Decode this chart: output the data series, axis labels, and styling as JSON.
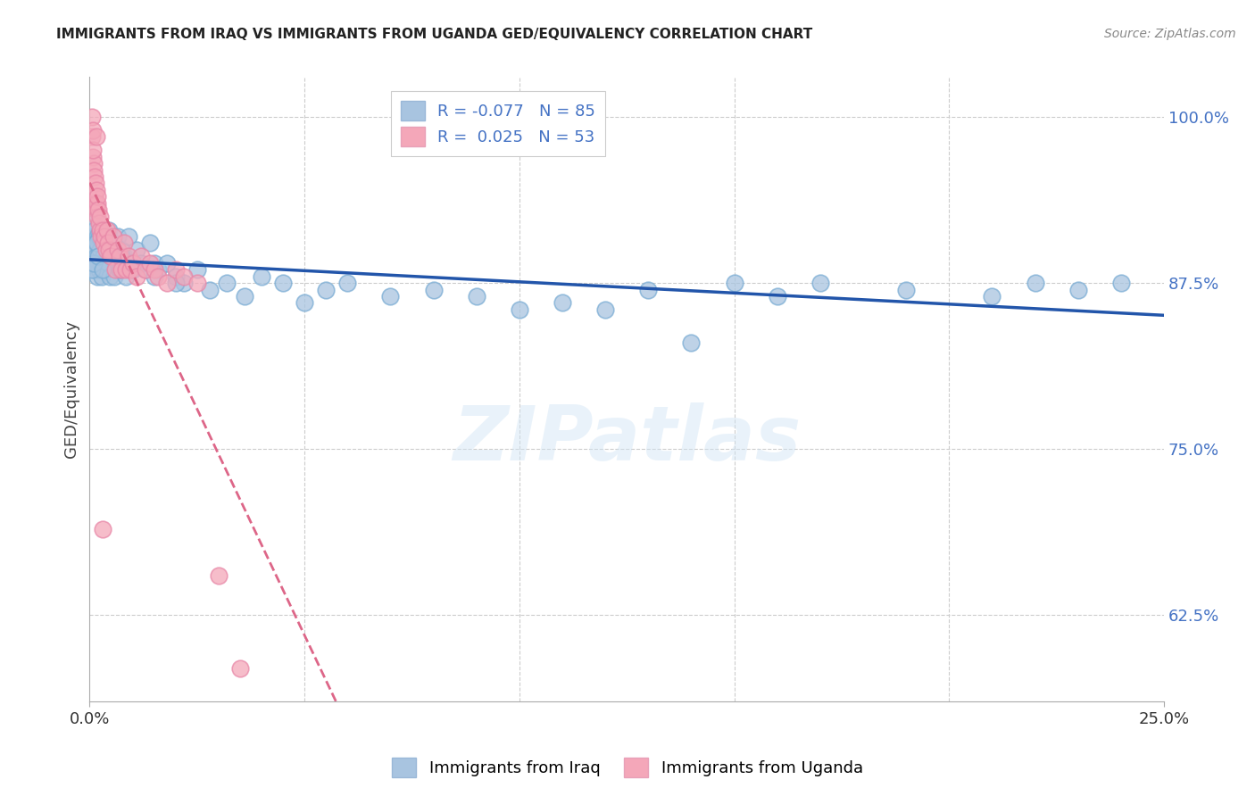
{
  "title": "IMMIGRANTS FROM IRAQ VS IMMIGRANTS FROM UGANDA GED/EQUIVALENCY CORRELATION CHART",
  "source": "Source: ZipAtlas.com",
  "ylabel": "GED/Equivalency",
  "yticks": [
    62.5,
    75.0,
    87.5,
    100.0
  ],
  "ytick_labels": [
    "62.5%",
    "75.0%",
    "87.5%",
    "100.0%"
  ],
  "xlim": [
    0.0,
    25.0
  ],
  "ylim": [
    56.0,
    103.0
  ],
  "xticks": [
    0.0,
    25.0
  ],
  "xtick_labels": [
    "0.0%",
    "25.0%"
  ],
  "legend_iraq_R": "-0.077",
  "legend_iraq_N": "85",
  "legend_uganda_R": "0.025",
  "legend_uganda_N": "53",
  "iraq_color": "#a8c4e0",
  "uganda_color": "#f4a7b9",
  "iraq_line_color": "#2255aa",
  "uganda_line_color": "#dd6688",
  "watermark_text": "ZIPatlas",
  "iraq_x": [
    0.05,
    0.07,
    0.08,
    0.1,
    0.1,
    0.11,
    0.12,
    0.13,
    0.14,
    0.15,
    0.16,
    0.17,
    0.18,
    0.19,
    0.2,
    0.22,
    0.23,
    0.24,
    0.25,
    0.27,
    0.28,
    0.3,
    0.32,
    0.35,
    0.37,
    0.4,
    0.42,
    0.45,
    0.48,
    0.5,
    0.55,
    0.58,
    0.6,
    0.65,
    0.7,
    0.75,
    0.8,
    0.85,
    0.9,
    0.95,
    1.0,
    1.1,
    1.2,
    1.3,
    1.4,
    1.5,
    1.6,
    1.8,
    2.0,
    2.2,
    2.5,
    2.8,
    3.2,
    3.6,
    4.0,
    4.5,
    5.0,
    5.5,
    6.0,
    7.0,
    8.0,
    9.0,
    10.0,
    11.0,
    12.0,
    13.0,
    14.0,
    15.0,
    16.0,
    17.0,
    19.0,
    21.0,
    22.0,
    23.0,
    24.0,
    0.06,
    0.09,
    0.15,
    0.2,
    0.3,
    0.5,
    0.7,
    1.0,
    1.5,
    2.0
  ],
  "iraq_y": [
    89.5,
    91.0,
    90.5,
    92.0,
    88.5,
    90.0,
    91.5,
    89.0,
    90.0,
    88.5,
    89.5,
    91.0,
    88.0,
    90.5,
    89.0,
    91.0,
    88.5,
    90.0,
    91.5,
    89.0,
    88.0,
    90.5,
    89.5,
    91.0,
    88.5,
    90.0,
    89.0,
    91.5,
    88.0,
    89.5,
    90.5,
    88.0,
    89.0,
    91.0,
    88.5,
    90.0,
    89.5,
    88.0,
    91.0,
    89.0,
    88.5,
    90.0,
    89.0,
    88.5,
    90.5,
    89.0,
    88.5,
    89.0,
    88.0,
    87.5,
    88.5,
    87.0,
    87.5,
    86.5,
    88.0,
    87.5,
    86.0,
    87.0,
    87.5,
    86.5,
    87.0,
    86.5,
    85.5,
    86.0,
    85.5,
    87.0,
    83.0,
    87.5,
    86.5,
    87.5,
    87.0,
    86.5,
    87.5,
    87.0,
    87.5,
    88.5,
    89.0,
    90.5,
    89.5,
    88.5,
    89.5,
    88.5,
    89.0,
    88.0,
    87.5
  ],
  "uganda_x": [
    0.05,
    0.06,
    0.07,
    0.08,
    0.09,
    0.1,
    0.11,
    0.12,
    0.13,
    0.14,
    0.15,
    0.16,
    0.17,
    0.18,
    0.19,
    0.2,
    0.22,
    0.24,
    0.25,
    0.27,
    0.3,
    0.32,
    0.35,
    0.38,
    0.4,
    0.43,
    0.45,
    0.5,
    0.55,
    0.6,
    0.65,
    0.7,
    0.75,
    0.8,
    0.85,
    0.9,
    0.95,
    1.0,
    1.1,
    1.2,
    1.3,
    1.4,
    1.5,
    1.6,
    1.8,
    2.0,
    2.2,
    2.5,
    3.0,
    3.5,
    0.08,
    0.15,
    0.3
  ],
  "uganda_y": [
    98.5,
    100.0,
    97.0,
    99.0,
    96.5,
    96.0,
    95.5,
    94.0,
    93.5,
    95.0,
    93.0,
    94.5,
    93.5,
    92.5,
    94.0,
    93.0,
    92.0,
    91.5,
    92.5,
    91.0,
    91.5,
    90.5,
    91.0,
    90.0,
    91.5,
    90.5,
    90.0,
    89.5,
    91.0,
    88.5,
    90.0,
    89.5,
    88.5,
    90.5,
    88.5,
    89.5,
    88.5,
    89.0,
    88.0,
    89.5,
    88.5,
    89.0,
    88.5,
    88.0,
    87.5,
    88.5,
    88.0,
    87.5,
    65.5,
    58.5,
    97.5,
    98.5,
    69.0
  ]
}
